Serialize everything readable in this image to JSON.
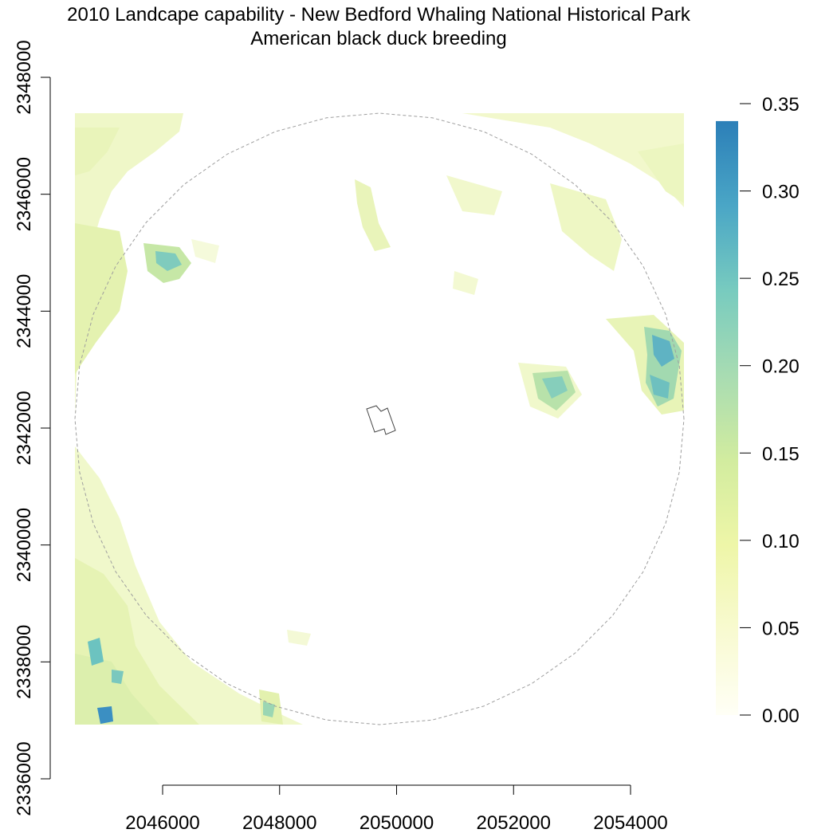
{
  "title": {
    "line1": "2010 Landcape capability - New Bedford Whaling National Historical Park",
    "line2": "American black duck breeding"
  },
  "x_axis": {
    "ticks": [
      {
        "value": 2046000,
        "label": "2046000"
      },
      {
        "value": 2048000,
        "label": "2048000"
      },
      {
        "value": 2050000,
        "label": "2050000"
      },
      {
        "value": 2052000,
        "label": "2052000"
      },
      {
        "value": 2054000,
        "label": "2054000"
      }
    ]
  },
  "y_axis": {
    "ticks": [
      {
        "value": 2336000,
        "label": "2336000"
      },
      {
        "value": 2338000,
        "label": "2338000"
      },
      {
        "value": 2340000,
        "label": "2340000"
      },
      {
        "value": 2342000,
        "label": "2342000"
      },
      {
        "value": 2344000,
        "label": "2344000"
      },
      {
        "value": 2346000,
        "label": "2346000"
      },
      {
        "value": 2348000,
        "label": "2348000"
      }
    ]
  },
  "legend": {
    "ticks": [
      {
        "value": 0.0,
        "label": "0.00"
      },
      {
        "value": 0.05,
        "label": "0.05"
      },
      {
        "value": 0.1,
        "label": "0.10"
      },
      {
        "value": 0.15,
        "label": "0.15"
      },
      {
        "value": 0.2,
        "label": "0.20"
      },
      {
        "value": 0.25,
        "label": "0.25"
      },
      {
        "value": 0.3,
        "label": "0.30"
      },
      {
        "value": 0.35,
        "label": "0.35"
      }
    ],
    "min": 0.0,
    "max": 0.34,
    "colors": [
      "#fffff6",
      "#f8fad0",
      "#eef6a8",
      "#d2ec9f",
      "#a8dcb2",
      "#78cbbf",
      "#4aa6c6",
      "#2c7fb8"
    ]
  },
  "map": {
    "xlim": [
      2044500,
      2054900
    ],
    "ylim": [
      2337000,
      2347400
    ],
    "buffer_center": [
      2049700,
      2342200
    ],
    "buffer_radius": 5200,
    "colors": {
      "patch_light": "#f2f8cc",
      "patch_mid": "#e6f3b4",
      "patch_green": "#c8e8a8",
      "patch_teal": "#6cc3c0",
      "patch_blue": "#3b8fc2",
      "buffer_line": "#9e9e9e",
      "park_outline": "#444444"
    }
  }
}
